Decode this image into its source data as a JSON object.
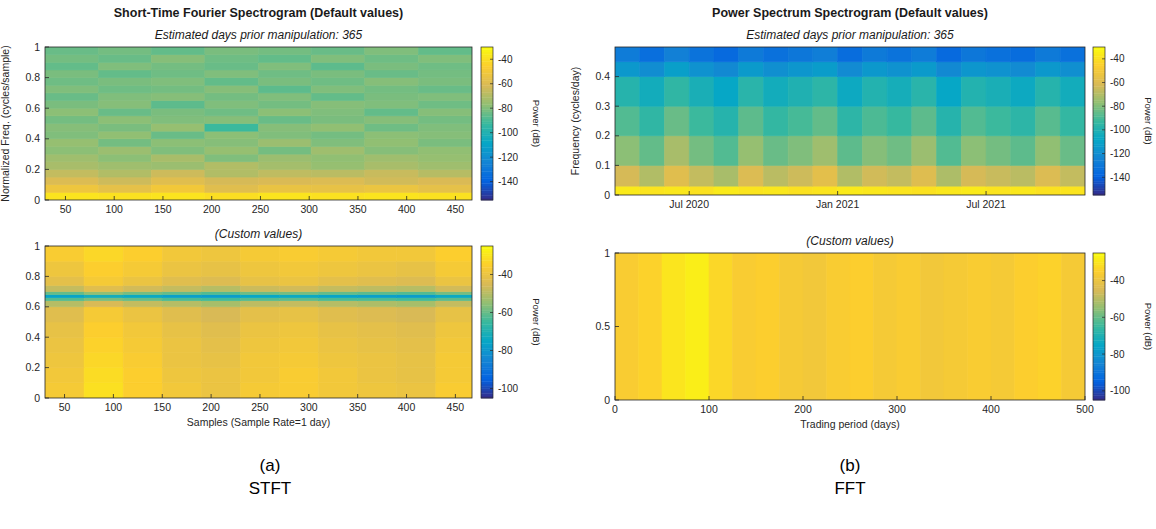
{
  "chart_data": [
    {
      "type": "heatmap",
      "title": "Short-Time Fourier Spectrogram (Default values)",
      "subtitle": "Estimated days prior manipulation: 365",
      "y_label": "Normalized Freq. (cycles/sample)",
      "xlim": [
        29,
        467
      ],
      "xticks": [
        50,
        100,
        150,
        200,
        250,
        300,
        350,
        400,
        450
      ],
      "ylim": [
        0,
        1
      ],
      "yticks": [
        0,
        0.2,
        0.4,
        0.6,
        0.8,
        1
      ],
      "x_edges": [
        29,
        84,
        138,
        193,
        248,
        302,
        357,
        412,
        467
      ],
      "y_edges": [
        0,
        0.05,
        0.1,
        0.15,
        0.2,
        0.25,
        0.3,
        0.35,
        0.4,
        0.45,
        0.5,
        0.55,
        0.6,
        0.65,
        0.7,
        0.75,
        0.8,
        0.85,
        0.9,
        0.95,
        1
      ],
      "cells": [
        [
          -38,
          -39,
          -38,
          -40,
          -38,
          -39,
          -38,
          -39
        ],
        [
          -52,
          -56,
          -50,
          -58,
          -54,
          -55,
          -53,
          -56
        ],
        [
          -60,
          -64,
          -58,
          -62,
          -61,
          -60,
          -63,
          -61
        ],
        [
          -66,
          -70,
          -64,
          -70,
          -67,
          -68,
          -65,
          -69
        ],
        [
          -72,
          -74,
          -75,
          -70,
          -73,
          -76,
          -72,
          -74
        ],
        [
          -74,
          -78,
          -72,
          -80,
          -75,
          -77,
          -74,
          -76
        ],
        [
          -78,
          -75,
          -80,
          -76,
          -82,
          -74,
          -79,
          -77
        ],
        [
          -76,
          -82,
          -78,
          -79,
          -75,
          -80,
          -77,
          -81
        ],
        [
          -80,
          -77,
          -84,
          -78,
          -80,
          -82,
          -78,
          -79
        ],
        [
          -79,
          -81,
          -76,
          -92,
          -79,
          -77,
          -83,
          -80
        ],
        [
          -82,
          -78,
          -80,
          -79,
          -84,
          -81,
          -79,
          -82
        ],
        [
          -78,
          -84,
          -81,
          -83,
          -78,
          -80,
          -85,
          -79
        ],
        [
          -81,
          -79,
          -86,
          -80,
          -82,
          -79,
          -80,
          -83
        ],
        [
          -84,
          -80,
          -79,
          -82,
          -80,
          -85,
          -81,
          -80
        ],
        [
          -80,
          -83,
          -82,
          -79,
          -86,
          -80,
          -82,
          -84
        ],
        [
          -83,
          -81,
          -80,
          -85,
          -81,
          -83,
          -79,
          -81
        ],
        [
          -81,
          -85,
          -83,
          -80,
          -83,
          -81,
          -84,
          -82
        ],
        [
          -85,
          -80,
          -82,
          -84,
          -80,
          -86,
          -81,
          -83
        ],
        [
          -82,
          -84,
          -79,
          -83,
          -85,
          -80,
          -83,
          -80
        ],
        [
          -84,
          -82,
          -85,
          -81,
          -82,
          -84,
          -80,
          -85
        ]
      ],
      "colorbar_lim": [
        -155,
        -30
      ],
      "colorbar_ticks": [
        -40,
        -60,
        -80,
        -100,
        -120,
        -140
      ],
      "colorbar_label": "Power (dB)"
    },
    {
      "type": "heatmap",
      "subtitle": "(Custom values)",
      "x_label": "Samples (Sample Rate=1 day)",
      "xlim": [
        30,
        467
      ],
      "xticks": [
        50,
        100,
        150,
        200,
        250,
        300,
        350,
        400,
        450
      ],
      "ylim": [
        0,
        1
      ],
      "yticks": [
        0,
        0.2,
        0.4,
        0.6,
        0.8,
        1
      ],
      "x_edges": [
        30,
        70,
        110,
        150,
        190,
        230,
        270,
        310,
        350,
        390,
        430,
        467
      ],
      "y_edges": [
        0,
        0.1,
        0.2,
        0.3,
        0.4,
        0.5,
        0.6,
        0.64,
        0.66,
        0.68,
        0.7,
        0.74,
        0.8,
        0.9,
        1
      ],
      "cells": [
        [
          -37,
          -31,
          -35,
          -38,
          -40,
          -37,
          -36,
          -38,
          -39,
          -40,
          -36
        ],
        [
          -38,
          -32,
          -35,
          -39,
          -40,
          -38,
          -36,
          -38,
          -40,
          -41,
          -37
        ],
        [
          -39,
          -33,
          -36,
          -40,
          -41,
          -38,
          -37,
          -39,
          -40,
          -41,
          -37
        ],
        [
          -40,
          -34,
          -37,
          -40,
          -42,
          -39,
          -38,
          -40,
          -41,
          -42,
          -38
        ],
        [
          -41,
          -35,
          -38,
          -41,
          -43,
          -40,
          -39,
          -41,
          -42,
          -43,
          -39
        ],
        [
          -43,
          -37,
          -40,
          -43,
          -45,
          -42,
          -41,
          -43,
          -44,
          -45,
          -41
        ],
        [
          -50,
          -45,
          -48,
          -50,
          -52,
          -49,
          -48,
          -50,
          -51,
          -52,
          -48
        ],
        [
          -62,
          -58,
          -60,
          -63,
          -64,
          -62,
          -61,
          -63,
          -63,
          -64,
          -61
        ],
        [
          -76,
          -72,
          -74,
          -77,
          -78,
          -75,
          -74,
          -76,
          -77,
          -78,
          -74
        ],
        [
          -60,
          -55,
          -58,
          -60,
          -62,
          -59,
          -58,
          -60,
          -61,
          -62,
          -58
        ],
        [
          -48,
          -43,
          -46,
          -48,
          -50,
          -47,
          -46,
          -48,
          -49,
          -50,
          -46
        ],
        [
          -42,
          -37,
          -40,
          -43,
          -44,
          -41,
          -40,
          -42,
          -43,
          -44,
          -40
        ],
        [
          -39,
          -35,
          -37,
          -40,
          -41,
          -39,
          -38,
          -39,
          -40,
          -41,
          -37
        ],
        [
          -36,
          -33,
          -35,
          -38,
          -39,
          -37,
          -36,
          -37,
          -38,
          -38,
          -35
        ]
      ],
      "colorbar_lim": [
        -105,
        -25
      ],
      "colorbar_ticks": [
        -40,
        -60,
        -80,
        -100
      ],
      "colorbar_label": "Power (dB)"
    },
    {
      "type": "heatmap",
      "title": "Power Spectrum Spectrogram (Default values)",
      "subtitle": "Estimated days prior manipulation: 365",
      "y_label": "Frequency (cycles/day)",
      "xlim": [
        "2020-04",
        "2021-11"
      ],
      "xticks": [
        {
          "value": "2020-07",
          "label": "Jul 2020"
        },
        {
          "value": "2021-01",
          "label": "Jan 2021"
        },
        {
          "value": "2021-07",
          "label": "Jul 2021"
        }
      ],
      "ylim": [
        0,
        0.5
      ],
      "yticks": [
        0,
        0.1,
        0.2,
        0.3,
        0.4
      ],
      "x_edges": [
        "2020-04",
        "2020-05",
        "2020-06",
        "2020-07",
        "2020-08",
        "2020-09",
        "2020-10",
        "2020-11",
        "2020-12",
        "2021-01",
        "2021-02",
        "2021-03",
        "2021-04",
        "2021-05",
        "2021-06",
        "2021-07",
        "2021-08",
        "2021-09",
        "2021-10",
        "2021-11"
      ],
      "y_edges": [
        0,
        0.03,
        0.1,
        0.2,
        0.3,
        0.4,
        0.45,
        0.5
      ],
      "cells": [
        [
          -36,
          -38,
          -37,
          -39,
          -36,
          -38,
          -37,
          -39,
          -38,
          -36,
          -37,
          -38,
          -39,
          -37,
          -36,
          -38,
          -37,
          -39,
          -38
        ],
        [
          -62,
          -70,
          -58,
          -66,
          -72,
          -60,
          -68,
          -64,
          -57,
          -70,
          -63,
          -66,
          -59,
          -71,
          -62,
          -65,
          -68,
          -60,
          -66
        ],
        [
          -78,
          -85,
          -72,
          -82,
          -88,
          -76,
          -84,
          -80,
          -74,
          -86,
          -79,
          -83,
          -75,
          -88,
          -78,
          -82,
          -86,
          -77,
          -84
        ],
        [
          -88,
          -95,
          -84,
          -92,
          -98,
          -86,
          -94,
          -90,
          -85,
          -96,
          -89,
          -93,
          -86,
          -98,
          -88,
          -92,
          -96,
          -87,
          -94
        ],
        [
          -98,
          -104,
          -95,
          -102,
          -108,
          -97,
          -104,
          -100,
          -96,
          -106,
          -99,
          -103,
          -97,
          -108,
          -99,
          -102,
          -106,
          -98,
          -104
        ],
        [
          -115,
          -120,
          -112,
          -118,
          -122,
          -114,
          -119,
          -116,
          -113,
          -121,
          -115,
          -118,
          -114,
          -122,
          -116,
          -118,
          -121,
          -115,
          -119
        ],
        [
          -128,
          -134,
          -126,
          -132,
          -136,
          -129,
          -133,
          -130,
          -127,
          -135,
          -129,
          -132,
          -128,
          -136,
          -130,
          -133,
          -135,
          -129,
          -133
        ]
      ],
      "colorbar_lim": [
        -155,
        -30
      ],
      "colorbar_ticks": [
        -40,
        -60,
        -80,
        -100,
        -120,
        -140
      ],
      "colorbar_label": "Power (dB)"
    },
    {
      "type": "heatmap",
      "subtitle": "(Custom values)",
      "x_label": "Trading period (days)",
      "xlim": [
        0,
        500
      ],
      "xticks": [
        0,
        100,
        200,
        300,
        400,
        500
      ],
      "ylim": [
        0,
        1
      ],
      "yticks": [
        0,
        0.5,
        1
      ],
      "x_edges": [
        0,
        25,
        50,
        75,
        100,
        125,
        150,
        175,
        200,
        225,
        250,
        275,
        300,
        325,
        350,
        375,
        400,
        425,
        450,
        475,
        500
      ],
      "y_edges": [
        0,
        1
      ],
      "cells": [
        [
          -36,
          -34,
          -30,
          -28,
          -33,
          -36,
          -35,
          -37,
          -38,
          -36,
          -35,
          -37,
          -36,
          -38,
          -37,
          -36,
          -37,
          -35,
          -34,
          -37
        ]
      ],
      "colorbar_lim": [
        -105,
        -25
      ],
      "colorbar_ticks": [
        -40,
        -60,
        -80,
        -100
      ],
      "colorbar_label": "Power (dB)"
    }
  ],
  "captions": [
    {
      "letter": "(a)",
      "name": "STFT"
    },
    {
      "letter": "(b)",
      "name": "FFT"
    }
  ]
}
